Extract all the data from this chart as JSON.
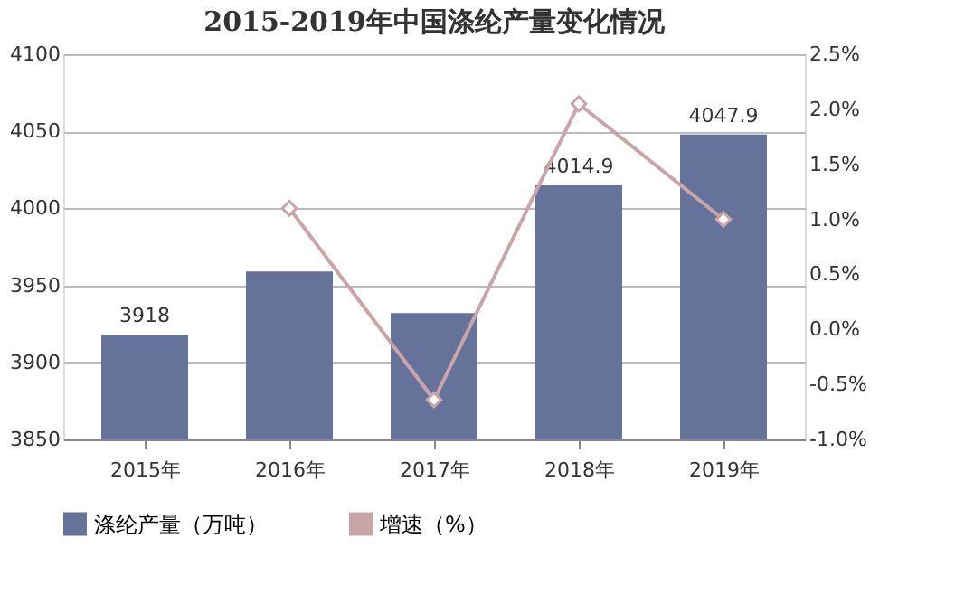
{
  "chart_data": {
    "type": "bar",
    "title": "2015-2019年中国涤纶产量变化情况",
    "categories": [
      "2015年",
      "2016年",
      "2017年",
      "2018年",
      "2019年"
    ],
    "series": [
      {
        "name": "涤纶产量（万吨）",
        "color": "#65739a",
        "values": [
          3918,
          3959,
          3932,
          4014.9,
          4047.9
        ],
        "value_labels": [
          "3918",
          null,
          null,
          "4014.9",
          "4047.9"
        ]
      },
      {
        "name": "增速（%）",
        "type": "line",
        "axis": "y2",
        "color": "#c9a5aa",
        "marker": "diamond",
        "values": [
          null,
          1.1,
          -0.64,
          2.05,
          1.0
        ]
      }
    ],
    "ylim": [
      3850,
      4100
    ],
    "yticks": [
      3850,
      3900,
      3950,
      4000,
      4050,
      4100
    ],
    "y2lim": [
      -1.0,
      2.5
    ],
    "y2ticks": [
      {
        "value": -1.0,
        "label": "-1.0%"
      },
      {
        "value": -0.5,
        "label": "-0.5%"
      },
      {
        "value": 0,
        "label": "0.0%"
      },
      {
        "value": 0.5,
        "label": "0.5%"
      },
      {
        "value": 1.0,
        "label": "1.0%"
      },
      {
        "value": 1.5,
        "label": "1.5%"
      },
      {
        "value": 2.0,
        "label": "2.0%"
      },
      {
        "value": 2.5,
        "label": "2.5%"
      }
    ],
    "grid": "y",
    "legend": "bottom"
  }
}
